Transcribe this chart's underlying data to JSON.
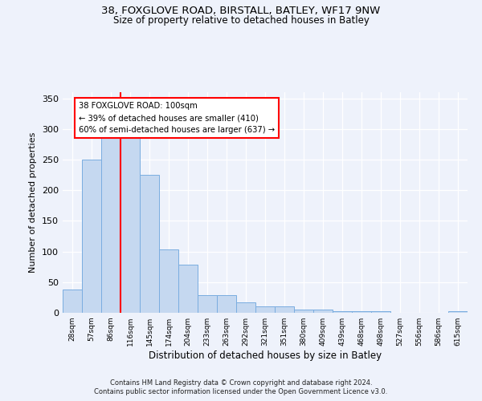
{
  "title_line1": "38, FOXGLOVE ROAD, BIRSTALL, BATLEY, WF17 9NW",
  "title_line2": "Size of property relative to detached houses in Batley",
  "xlabel": "Distribution of detached houses by size in Batley",
  "ylabel": "Number of detached properties",
  "footer_line1": "Contains HM Land Registry data © Crown copyright and database right 2024.",
  "footer_line2": "Contains public sector information licensed under the Open Government Licence v3.0.",
  "bar_labels": [
    "28sqm",
    "57sqm",
    "86sqm",
    "116sqm",
    "145sqm",
    "174sqm",
    "204sqm",
    "233sqm",
    "263sqm",
    "292sqm",
    "321sqm",
    "351sqm",
    "380sqm",
    "409sqm",
    "439sqm",
    "468sqm",
    "498sqm",
    "527sqm",
    "556sqm",
    "586sqm",
    "615sqm"
  ],
  "bar_values": [
    38,
    250,
    290,
    290,
    225,
    103,
    79,
    29,
    29,
    17,
    10,
    10,
    5,
    5,
    3,
    3,
    3,
    0,
    0,
    0,
    3
  ],
  "bar_color": "#c5d8f0",
  "bar_edge_color": "#7aade0",
  "vline_color": "red",
  "ylim": [
    0,
    360
  ],
  "yticks": [
    0,
    50,
    100,
    150,
    200,
    250,
    300,
    350
  ],
  "annotation_title": "38 FOXGLOVE ROAD: 100sqm",
  "annotation_line1": "← 39% of detached houses are smaller (410)",
  "annotation_line2": "60% of semi-detached houses are larger (637) →",
  "background_color": "#eef2fb",
  "plot_bg_color": "#eef2fb",
  "grid_color": "#ffffff"
}
